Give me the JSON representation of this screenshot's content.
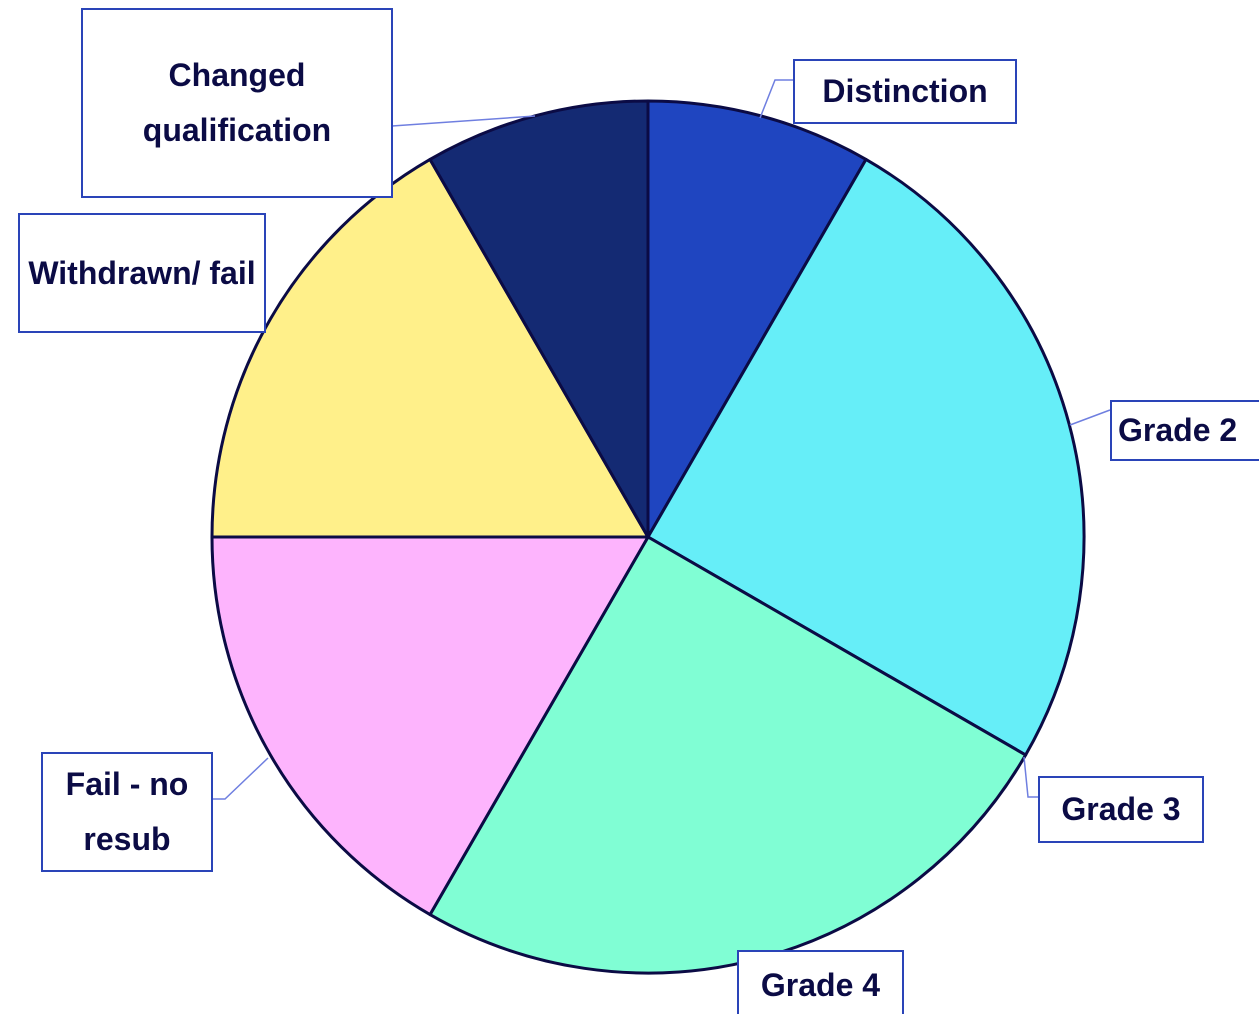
{
  "chart_data": {
    "type": "pie",
    "categories": [
      "Distinction",
      "Grade 2",
      "Grade 3",
      "Grade 4",
      "Fail - no resub",
      "Withdrawn/ fail",
      "Changed qualification"
    ],
    "values": [
      1,
      3,
      0,
      3,
      2,
      2,
      1
    ],
    "colors": [
      "#1f45c0",
      "#66eef8",
      "#9fd0ff",
      "#80fed4",
      "#fdb4fd",
      "#fff08a",
      "#142a73"
    ]
  }
}
